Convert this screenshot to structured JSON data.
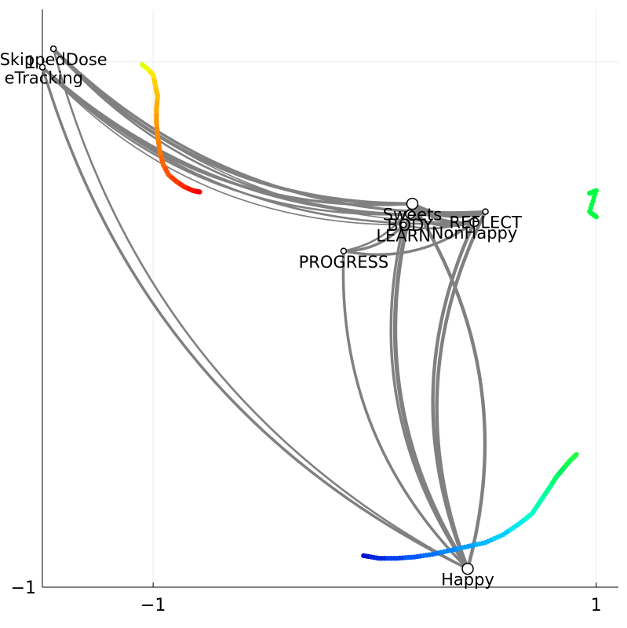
{
  "chart_data": {
    "type": "network",
    "title": "",
    "xlabel": "",
    "ylabel": "",
    "xlim": [
      -1.5,
      1.1
    ],
    "ylim": [
      -1.0,
      1.2
    ],
    "xticks": [
      {
        "value": -1,
        "label": "−1"
      },
      {
        "value": 1,
        "label": "1"
      }
    ],
    "yticks": [
      {
        "value": -1,
        "label": "−1"
      },
      {
        "value": 1,
        "label": "1"
      }
    ],
    "grid": true,
    "colors": {
      "edge": "#808080",
      "node_fill": "#ffffff",
      "node_stroke": "#000000"
    },
    "nodes": [
      {
        "label": "SkippedDose",
        "x": -1.45,
        "y": 1.05,
        "size": "small",
        "label_anchor": "middle"
      },
      {
        "label": "eTracking",
        "x": -1.5,
        "y": 0.98,
        "size": "small",
        "label_anchor": "end"
      },
      {
        "label": "Sweets",
        "x": 0.17,
        "y": 0.46,
        "size": "large",
        "label_anchor": "middle"
      },
      {
        "label": "REFLECT",
        "x": 0.5,
        "y": 0.43,
        "size": "small",
        "label_anchor": "middle"
      },
      {
        "label": "BODY",
        "x": 0.16,
        "y": 0.42,
        "size": "medium",
        "label_anchor": "middle"
      },
      {
        "label": "NonHappy",
        "x": 0.45,
        "y": 0.39,
        "size": "medium",
        "label_anchor": "middle"
      },
      {
        "label": "LEARN",
        "x": 0.13,
        "y": 0.38,
        "size": "small",
        "label_anchor": "middle"
      },
      {
        "label": "PROGRESS",
        "x": -0.14,
        "y": 0.28,
        "size": "small",
        "label_anchor": "middle"
      },
      {
        "label": "Happy",
        "x": 0.42,
        "y": -0.93,
        "size": "large",
        "label_anchor": "middle"
      }
    ],
    "edges": [
      {
        "from": "SkippedDose",
        "to": "Sweets",
        "weight": 4
      },
      {
        "from": "SkippedDose",
        "to": "REFLECT",
        "weight": 3
      },
      {
        "from": "SkippedDose",
        "to": "BODY",
        "weight": 2
      },
      {
        "from": "SkippedDose",
        "to": "Happy",
        "weight": 2
      },
      {
        "from": "SkippedDose",
        "to": "NonHappy",
        "weight": 1
      },
      {
        "from": "eTracking",
        "to": "Sweets",
        "weight": 3
      },
      {
        "from": "eTracking",
        "to": "REFLECT",
        "weight": 3
      },
      {
        "from": "eTracking",
        "to": "NonHappy",
        "weight": 2
      },
      {
        "from": "eTracking",
        "to": "Happy",
        "weight": 3
      },
      {
        "from": "eTracking",
        "to": "BODY",
        "weight": 2
      },
      {
        "from": "eTracking",
        "to": "LEARN",
        "weight": 1
      },
      {
        "from": "Sweets",
        "to": "REFLECT",
        "weight": 5
      },
      {
        "from": "Sweets",
        "to": "NonHappy",
        "weight": 4
      },
      {
        "from": "Sweets",
        "to": "Happy",
        "weight": 5
      },
      {
        "from": "BODY",
        "to": "Happy",
        "weight": 3
      },
      {
        "from": "BODY",
        "to": "NonHappy",
        "weight": 3
      },
      {
        "from": "LEARN",
        "to": "Happy",
        "weight": 3
      },
      {
        "from": "LEARN",
        "to": "REFLECT",
        "weight": 2
      },
      {
        "from": "PROGRESS",
        "to": "Happy",
        "weight": 3
      },
      {
        "from": "PROGRESS",
        "to": "NonHappy",
        "weight": 3
      },
      {
        "from": "PROGRESS",
        "to": "LEARN",
        "weight": 3
      },
      {
        "from": "PROGRESS",
        "to": "Sweets",
        "weight": 2
      },
      {
        "from": "NonHappy",
        "to": "Happy",
        "weight": 4
      },
      {
        "from": "REFLECT",
        "to": "Happy",
        "weight": 4
      },
      {
        "from": "Happy",
        "to": "Sweets",
        "weight": 4
      }
    ],
    "trajectories": [
      {
        "name": "upper-trajectory",
        "points": [
          [
            -1.05,
            0.99
          ],
          [
            -1.02,
            0.97
          ],
          [
            -1.0,
            0.95
          ],
          [
            -0.99,
            0.91
          ],
          [
            -0.98,
            0.87
          ],
          [
            -0.985,
            0.82
          ],
          [
            -0.985,
            0.77
          ],
          [
            -0.98,
            0.72
          ],
          [
            -0.97,
            0.66
          ],
          [
            -0.955,
            0.61
          ],
          [
            -0.93,
            0.57
          ],
          [
            -0.895,
            0.545
          ],
          [
            -0.86,
            0.525
          ],
          [
            -0.82,
            0.51
          ],
          [
            -0.79,
            0.505
          ]
        ],
        "colors": [
          "#e0ff10",
          "#f0ff00",
          "#ffe800",
          "#ffd000",
          "#ffc000",
          "#ffaa00",
          "#ff9a00",
          "#ff8a00",
          "#ff7800",
          "#ff6400",
          "#ff5000",
          "#ff3c00",
          "#ff2800",
          "#f81400",
          "#f00000"
        ]
      },
      {
        "name": "lower-trajectory",
        "points": [
          [
            -0.05,
            -0.88
          ],
          [
            0.02,
            -0.89
          ],
          [
            0.1,
            -0.89
          ],
          [
            0.18,
            -0.885
          ],
          [
            0.26,
            -0.875
          ],
          [
            0.34,
            -0.86
          ],
          [
            0.42,
            -0.845
          ],
          [
            0.5,
            -0.83
          ],
          [
            0.58,
            -0.8
          ],
          [
            0.65,
            -0.76
          ],
          [
            0.71,
            -0.72
          ],
          [
            0.75,
            -0.67
          ],
          [
            0.79,
            -0.62
          ],
          [
            0.82,
            -0.58
          ],
          [
            0.85,
            -0.55
          ],
          [
            0.88,
            -0.52
          ],
          [
            0.91,
            -0.495
          ]
        ],
        "colors": [
          "#0010d0",
          "#0028e0",
          "#0040f0",
          "#0058ff",
          "#0070ff",
          "#0088ff",
          "#00a0ff",
          "#00b8ff",
          "#00d0ff",
          "#00e8f0",
          "#00ffd0",
          "#00ffb0",
          "#00ff90",
          "#00ff70",
          "#00f060",
          "#10ff50",
          "#20ff40"
        ]
      },
      {
        "name": "right-edge-fragments",
        "points": [
          [
            0.97,
            0.5
          ],
          [
            1.0,
            0.51
          ],
          [
            0.97,
            0.43
          ],
          [
            1.0,
            0.41
          ]
        ],
        "colors": [
          "#00ff40",
          "#00ff40",
          "#00ff40",
          "#00ff40"
        ]
      }
    ]
  }
}
